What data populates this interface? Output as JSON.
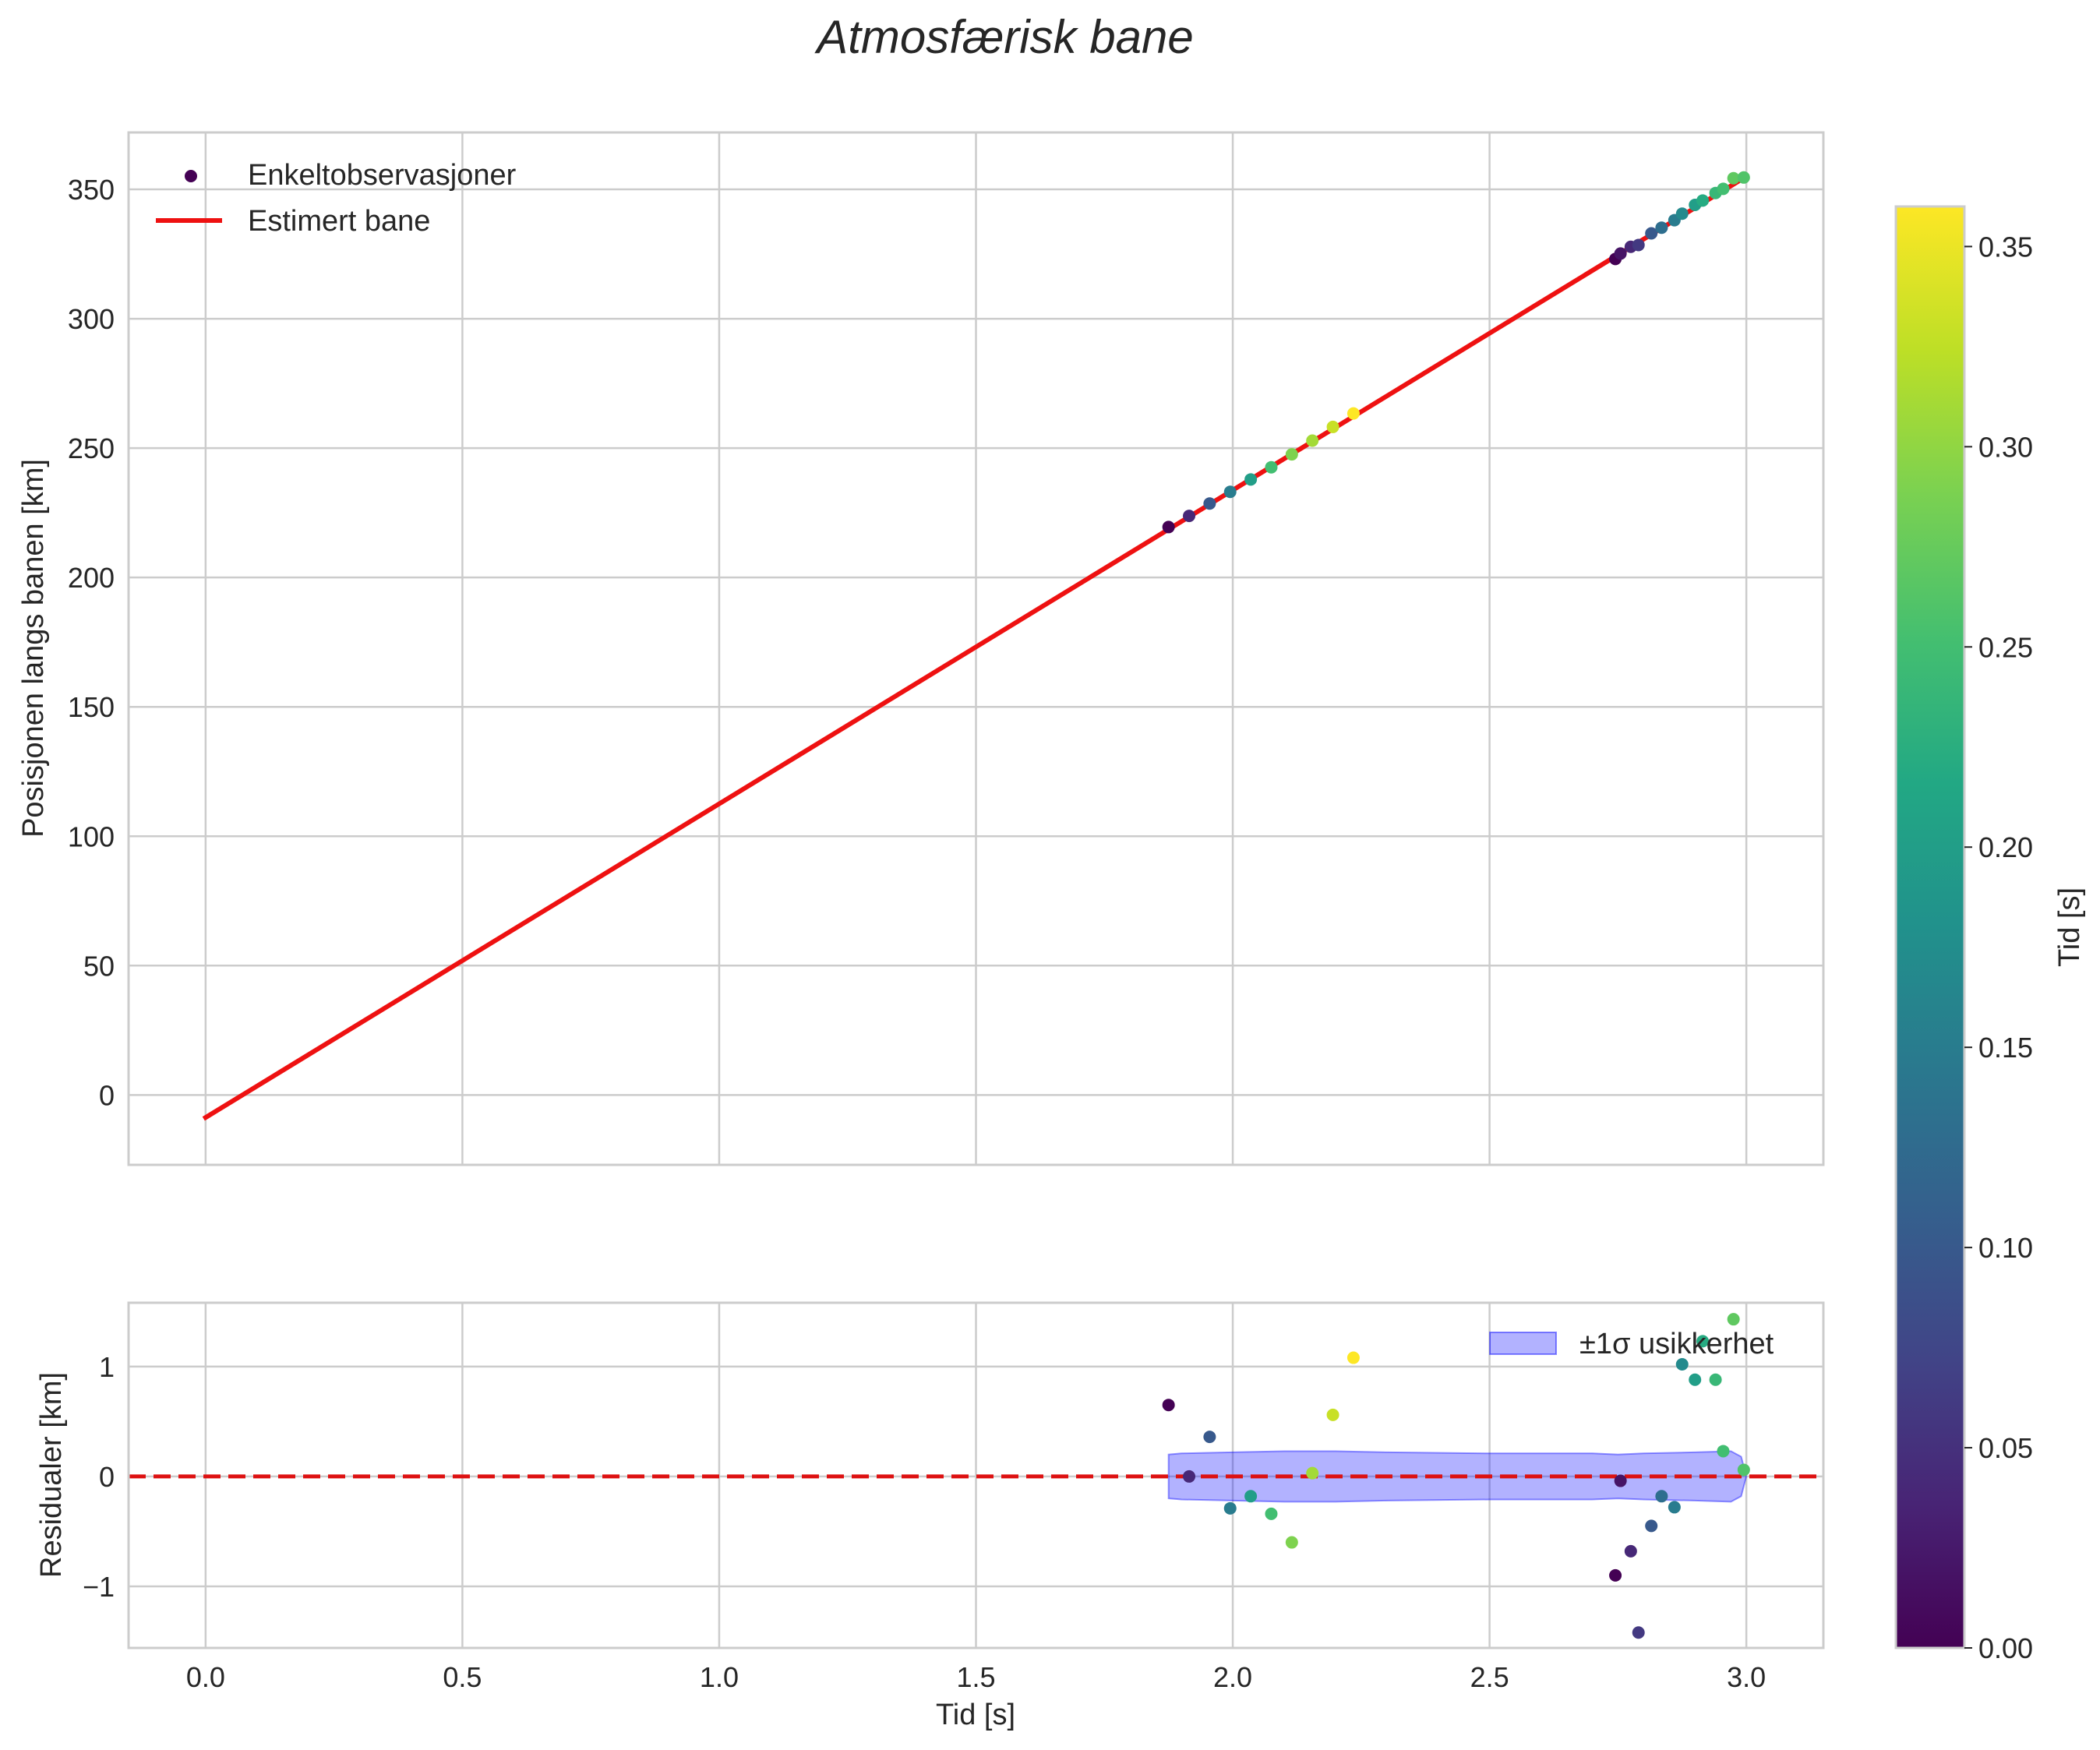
{
  "chart_data": [
    {
      "type": "scatter",
      "title": "Atmosfærisk bane",
      "xlabel": "",
      "ylabel": "Posisjonen langs banen [km]",
      "xlim": [
        -0.15,
        3.15
      ],
      "ylim": [
        -27,
        372
      ],
      "xticks": [
        0.0,
        0.5,
        1.0,
        1.5,
        2.0,
        2.5,
        3.0
      ],
      "xticklabels": [
        "",
        "",
        "",
        "",
        "",
        "",
        ""
      ],
      "yticks": [
        0,
        50,
        100,
        150,
        200,
        250,
        300,
        350
      ],
      "yticklabels": [
        "0",
        "50",
        "100",
        "150",
        "200",
        "250",
        "300",
        "350"
      ],
      "grid": true,
      "legend_position": "top-left",
      "series": [
        {
          "name": "Enkeltobservasjoner",
          "kind": "scatter",
          "x": [
            1.875,
            1.915,
            1.955,
            1.995,
            2.035,
            2.075,
            2.115,
            2.155,
            2.195,
            2.235,
            2.745,
            2.755,
            2.775,
            2.79,
            2.815,
            2.835,
            2.86,
            2.875,
            2.9,
            2.915,
            2.94,
            2.955,
            2.975,
            2.995
          ],
          "y": [
            219.5,
            223.8,
            228.6,
            233.1,
            237.9,
            242.6,
            247.6,
            252.9,
            258.2,
            263.4,
            323.1,
            325.2,
            327.8,
            328.5,
            333.0,
            335.2,
            338.1,
            340.6,
            344.0,
            345.7,
            348.6,
            350.2,
            354.3,
            354.6
          ],
          "color_by": "Tid [s]",
          "c": [
            0.0,
            0.04,
            0.1,
            0.15,
            0.2,
            0.25,
            0.29,
            0.31,
            0.33,
            0.36,
            0.0,
            0.02,
            0.04,
            0.06,
            0.1,
            0.13,
            0.15,
            0.17,
            0.2,
            0.22,
            0.24,
            0.25,
            0.27,
            0.26
          ]
        },
        {
          "name": "Estimert bane",
          "kind": "line",
          "color": "#ee1111",
          "x": [
            0.0,
            3.0
          ],
          "y": [
            -8.7,
            355.0
          ]
        }
      ]
    },
    {
      "type": "scatter",
      "title": "",
      "xlabel": "Tid [s]",
      "ylabel": "Residualer [km]",
      "xlim": [
        -0.15,
        3.15
      ],
      "ylim": [
        -1.56,
        1.58
      ],
      "xticks": [
        0.0,
        0.5,
        1.0,
        1.5,
        2.0,
        2.5,
        3.0
      ],
      "xticklabels": [
        "0.0",
        "0.5",
        "1.0",
        "1.5",
        "2.0",
        "2.5",
        "3.0"
      ],
      "yticks": [
        1,
        0,
        -1
      ],
      "yticklabels": [
        "1",
        "0",
        "−1"
      ],
      "grid": true,
      "legend_position": "top-right",
      "zero_line": {
        "y": 0,
        "color": "#dd1111",
        "style": "dashed"
      },
      "band": {
        "name": "±1σ usikkerhet",
        "color": "#0000ff",
        "x": [
          1.875,
          1.9,
          2.0,
          2.1,
          2.2,
          2.3,
          2.5,
          2.7,
          2.75,
          2.8,
          2.9,
          2.97,
          2.99,
          3.0
        ],
        "upper": [
          0.2,
          0.21,
          0.22,
          0.23,
          0.23,
          0.22,
          0.21,
          0.21,
          0.2,
          0.21,
          0.22,
          0.23,
          0.18,
          0.0
        ],
        "lower": [
          -0.2,
          -0.21,
          -0.22,
          -0.23,
          -0.23,
          -0.22,
          -0.21,
          -0.21,
          -0.2,
          -0.21,
          -0.22,
          -0.23,
          -0.18,
          0.0
        ]
      },
      "series": [
        {
          "name": "residualer",
          "kind": "scatter",
          "x": [
            1.875,
            1.915,
            1.955,
            1.995,
            2.035,
            2.075,
            2.115,
            2.155,
            2.195,
            2.235,
            2.745,
            2.755,
            2.775,
            2.79,
            2.815,
            2.835,
            2.86,
            2.875,
            2.9,
            2.915,
            2.94,
            2.955,
            2.975,
            2.995
          ],
          "y": [
            0.65,
            0.0,
            0.36,
            -0.29,
            -0.18,
            -0.34,
            -0.6,
            0.03,
            0.56,
            1.08,
            -0.9,
            -0.04,
            -0.68,
            -1.42,
            -0.45,
            -0.18,
            -0.28,
            1.02,
            0.88,
            1.23,
            0.88,
            0.23,
            1.43,
            0.06
          ],
          "c": [
            0.0,
            0.04,
            0.1,
            0.15,
            0.2,
            0.25,
            0.29,
            0.31,
            0.33,
            0.36,
            0.0,
            0.02,
            0.04,
            0.06,
            0.1,
            0.13,
            0.15,
            0.17,
            0.2,
            0.22,
            0.24,
            0.25,
            0.27,
            0.26
          ]
        }
      ]
    }
  ],
  "colorbar": {
    "label": "Tid [s]",
    "range": [
      0.0,
      0.36
    ],
    "ticks": [
      0.0,
      0.05,
      0.1,
      0.15,
      0.2,
      0.25,
      0.3,
      0.35
    ],
    "ticklabels": [
      "0.00",
      "0.05",
      "0.10",
      "0.15",
      "0.20",
      "0.25",
      "0.30",
      "0.35"
    ],
    "colormap": "viridis"
  }
}
